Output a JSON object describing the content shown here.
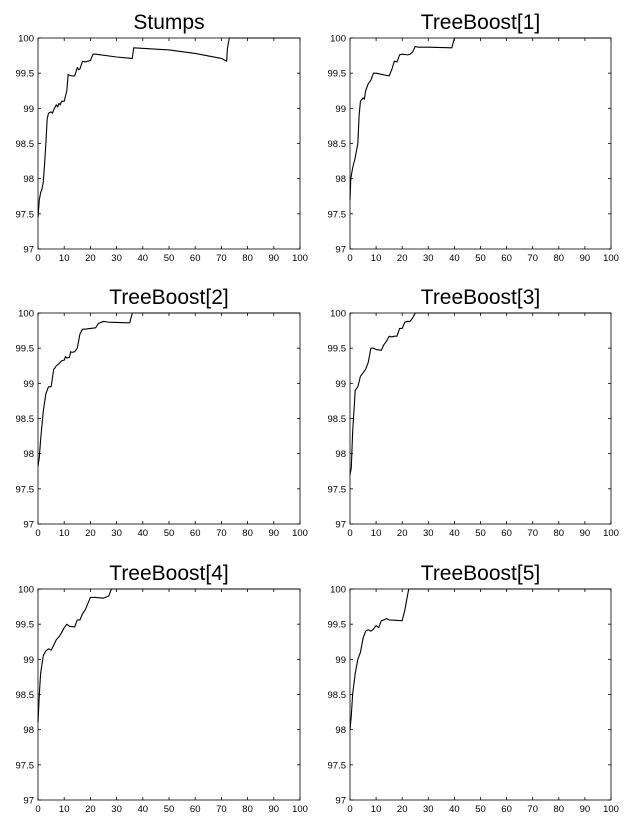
{
  "figure": {
    "background": "#ffffff",
    "line_color": "#000000"
  },
  "chart_data": [
    {
      "type": "line",
      "title": "Stumps",
      "xlabel": "",
      "ylabel": "",
      "xlim": [
        0,
        100
      ],
      "ylim": [
        97,
        100
      ],
      "xticks": [
        "0",
        "10",
        "20",
        "30",
        "40",
        "50",
        "60",
        "70",
        "80",
        "90",
        "100"
      ],
      "yticks": [
        "97",
        "97.5",
        "98",
        "98.5",
        "99",
        "99.5",
        "100"
      ],
      "grid": false,
      "series": [
        {
          "x": [
            0,
            0.5,
            1,
            1.5,
            2,
            2.5,
            3,
            3.5,
            4,
            5,
            5.5,
            6,
            7,
            7.5,
            8,
            8.5,
            9,
            10,
            11,
            11.5,
            12,
            13,
            14,
            15,
            15.5,
            16,
            17,
            18,
            19,
            20,
            21,
            22,
            30,
            36,
            36.5,
            50,
            60,
            70,
            72,
            72.3,
            73,
            100
          ],
          "y": [
            97.45,
            97.7,
            97.8,
            97.85,
            97.95,
            98.2,
            98.5,
            98.85,
            98.93,
            98.95,
            98.93,
            98.98,
            99.05,
            99.02,
            99.07,
            99.05,
            99.1,
            99.1,
            99.25,
            99.48,
            99.47,
            99.46,
            99.46,
            99.58,
            99.55,
            99.56,
            99.67,
            99.66,
            99.67,
            99.68,
            99.77,
            99.77,
            99.73,
            99.71,
            99.86,
            99.83,
            99.78,
            99.71,
            99.67,
            99.85,
            100,
            100
          ]
        }
      ]
    },
    {
      "type": "line",
      "title": "TreeBoost[1]",
      "xlabel": "",
      "ylabel": "",
      "xlim": [
        0,
        100
      ],
      "ylim": [
        97,
        100
      ],
      "xticks": [
        "0",
        "10",
        "20",
        "30",
        "40",
        "50",
        "60",
        "70",
        "80",
        "90",
        "100"
      ],
      "yticks": [
        "97",
        "97.5",
        "98",
        "98.5",
        "99",
        "99.5",
        "100"
      ],
      "grid": false,
      "series": [
        {
          "x": [
            0,
            0.3,
            1,
            2,
            3,
            3.5,
            4,
            5,
            5.5,
            6,
            7,
            8,
            9,
            10,
            15,
            16,
            17,
            18,
            19,
            20,
            22,
            23,
            24,
            25,
            26,
            30,
            39,
            40,
            100
          ],
          "y": [
            97.7,
            98,
            98.15,
            98.3,
            98.5,
            98.9,
            99.1,
            99.15,
            99.13,
            99.25,
            99.35,
            99.4,
            99.5,
            99.5,
            99.46,
            99.55,
            99.67,
            99.66,
            99.76,
            99.77,
            99.76,
            99.77,
            99.8,
            99.88,
            99.87,
            99.87,
            99.86,
            100,
            100
          ]
        }
      ]
    },
    {
      "type": "line",
      "title": "TreeBoost[2]",
      "xlabel": "",
      "ylabel": "",
      "xlim": [
        0,
        100
      ],
      "ylim": [
        97,
        100
      ],
      "xticks": [
        "0",
        "10",
        "20",
        "30",
        "40",
        "50",
        "60",
        "70",
        "80",
        "90",
        "100"
      ],
      "yticks": [
        "97",
        "97.5",
        "98",
        "98.5",
        "99",
        "99.5",
        "100"
      ],
      "grid": false,
      "series": [
        {
          "x": [
            0,
            0.5,
            1,
            2,
            3,
            4,
            5,
            6,
            6.5,
            7,
            8,
            8.5,
            9,
            10,
            10.5,
            11,
            12,
            12.5,
            13,
            14,
            15,
            16,
            17,
            18,
            20,
            22,
            23,
            25,
            27,
            35,
            36,
            100
          ],
          "y": [
            97.82,
            97.95,
            98.2,
            98.6,
            98.85,
            98.95,
            98.95,
            99.2,
            99.22,
            99.25,
            99.28,
            99.3,
            99.32,
            99.33,
            99.38,
            99.36,
            99.37,
            99.45,
            99.44,
            99.45,
            99.5,
            99.7,
            99.77,
            99.77,
            99.78,
            99.79,
            99.85,
            99.88,
            99.87,
            99.86,
            100,
            100
          ]
        }
      ]
    },
    {
      "type": "line",
      "title": "TreeBoost[3]",
      "xlabel": "",
      "ylabel": "",
      "xlim": [
        0,
        100
      ],
      "ylim": [
        97,
        100
      ],
      "xticks": [
        "0",
        "10",
        "20",
        "30",
        "40",
        "50",
        "60",
        "70",
        "80",
        "90",
        "100"
      ],
      "yticks": [
        "97",
        "97.5",
        "98",
        "98.5",
        "99",
        "99.5",
        "100"
      ],
      "grid": false,
      "series": [
        {
          "x": [
            0,
            0.5,
            1,
            2,
            3,
            4,
            5,
            6,
            7,
            8,
            9,
            10,
            12,
            13,
            14,
            15,
            16,
            17,
            18,
            19,
            20,
            21,
            22,
            23,
            24,
            25,
            100
          ],
          "y": [
            97.7,
            97.8,
            98.3,
            98.9,
            98.95,
            99.1,
            99.15,
            99.2,
            99.3,
            99.5,
            99.5,
            99.48,
            99.47,
            99.55,
            99.6,
            99.67,
            99.66,
            99.67,
            99.67,
            99.78,
            99.78,
            99.87,
            99.88,
            99.88,
            99.93,
            100,
            100
          ]
        }
      ]
    },
    {
      "type": "line",
      "title": "TreeBoost[4]",
      "xlabel": "",
      "ylabel": "",
      "xlim": [
        0,
        100
      ],
      "ylim": [
        97,
        100
      ],
      "xticks": [
        "0",
        "10",
        "20",
        "30",
        "40",
        "50",
        "60",
        "70",
        "80",
        "90",
        "100"
      ],
      "yticks": [
        "97",
        "97.5",
        "98",
        "98.5",
        "99",
        "99.5",
        "100"
      ],
      "grid": false,
      "series": [
        {
          "x": [
            0,
            0.5,
            1,
            2,
            3,
            4,
            5,
            6,
            7,
            8,
            9,
            10,
            11,
            12,
            14,
            15,
            16,
            17,
            18,
            20,
            22,
            25,
            27,
            28,
            100
          ],
          "y": [
            98.1,
            98.5,
            98.8,
            99.05,
            99.12,
            99.15,
            99.13,
            99.2,
            99.28,
            99.32,
            99.38,
            99.45,
            99.5,
            99.47,
            99.46,
            99.56,
            99.56,
            99.65,
            99.7,
            99.88,
            99.88,
            99.87,
            99.9,
            100,
            100
          ]
        }
      ]
    },
    {
      "type": "line",
      "title": "TreeBoost[5]",
      "xlabel": "",
      "ylabel": "",
      "xlim": [
        0,
        100
      ],
      "ylim": [
        97,
        100
      ],
      "xticks": [
        "0",
        "10",
        "20",
        "30",
        "40",
        "50",
        "60",
        "70",
        "80",
        "90",
        "100"
      ],
      "yticks": [
        "97",
        "97.5",
        "98",
        "98.5",
        "99",
        "99.5",
        "100"
      ],
      "grid": false,
      "series": [
        {
          "x": [
            0,
            0.5,
            1,
            2,
            3,
            4,
            5,
            6,
            7,
            8,
            9,
            10,
            11,
            12,
            13,
            14,
            15,
            20,
            21,
            22,
            22.5,
            100
          ],
          "y": [
            98.0,
            98.2,
            98.5,
            98.8,
            99.0,
            99.1,
            99.3,
            99.4,
            99.42,
            99.4,
            99.43,
            99.48,
            99.45,
            99.55,
            99.56,
            99.58,
            99.56,
            99.55,
            99.7,
            99.9,
            100,
            100
          ]
        }
      ]
    }
  ]
}
